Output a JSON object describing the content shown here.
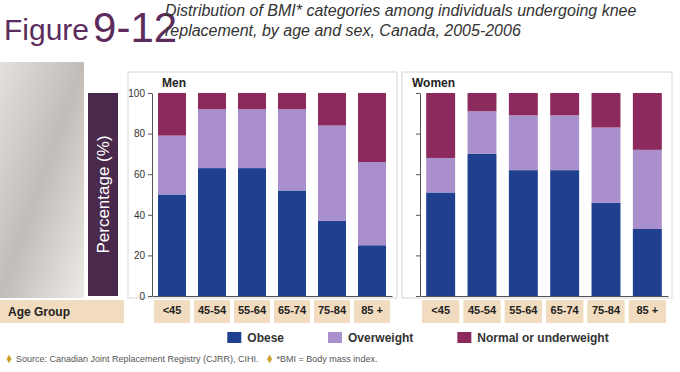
{
  "figure_label": "Figure",
  "figure_number": "9-12",
  "title": "Distribution of BMI* categories among individuals undergoing knee replacement, by age and sex, Canada, 2005-2006",
  "source": "Source: Canadian Joint Replacement Registry (CJRR), CIHI.",
  "footnote": "*BMI = Body mass index.",
  "chart_data": [
    {
      "type": "bar",
      "stacked": true,
      "title": "Men",
      "xlabel": "Age Group",
      "ylabel": "Percentage (%)",
      "categories": [
        "<45",
        "45-54",
        "55-64",
        "65-74",
        "75-84",
        "85 +"
      ],
      "series": [
        {
          "name": "Obese",
          "color": "#1f3f8f",
          "values": [
            50,
            63,
            63,
            52,
            37,
            25
          ]
        },
        {
          "name": "Overweight",
          "color": "#a98fcc",
          "values": [
            29,
            29,
            29,
            40,
            47,
            41
          ]
        },
        {
          "name": "Normal or underweight",
          "color": "#8c2a5e",
          "values": [
            21,
            8,
            8,
            8,
            16,
            34
          ]
        }
      ],
      "ylim": [
        0,
        100
      ],
      "yticks": [
        0,
        20,
        40,
        60,
        80,
        100
      ],
      "legend": "bottom"
    },
    {
      "type": "bar",
      "stacked": true,
      "title": "Women",
      "categories": [
        "<45",
        "45-54",
        "55-64",
        "65-74",
        "75-84",
        "85 +"
      ],
      "series": [
        {
          "color": "#1f3f8f",
          "values": [
            51,
            70,
            62,
            62,
            46,
            33
          ]
        },
        {
          "color": "#a98fcc",
          "values": [
            17,
            21,
            27,
            27,
            37,
            39
          ]
        },
        {
          "color": "#8c2a5e",
          "values": [
            32,
            9,
            11,
            11,
            17,
            28
          ]
        }
      ],
      "ylim": [
        0,
        100
      ],
      "yticks": [
        0,
        20,
        40,
        60,
        80,
        100
      ],
      "tick_labels": "x"
    }
  ]
}
